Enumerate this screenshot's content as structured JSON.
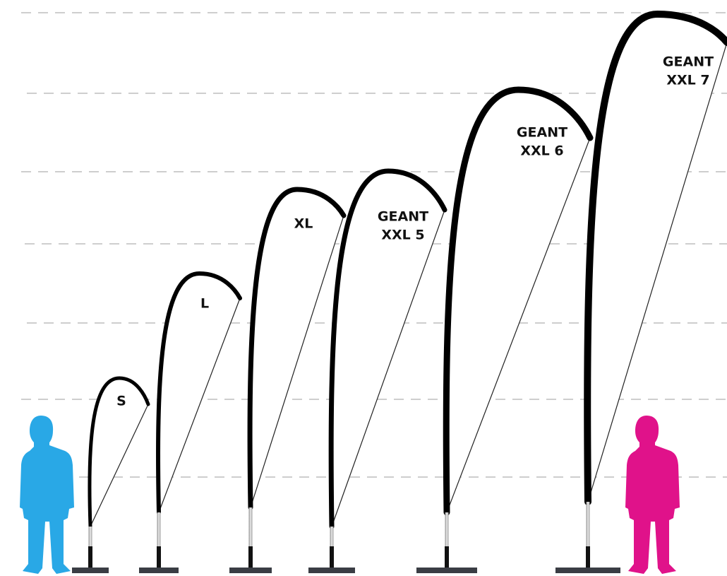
{
  "flags": [
    {
      "label": [
        "S"
      ]
    },
    {
      "label": [
        "L"
      ]
    },
    {
      "label": [
        "XL"
      ]
    },
    {
      "label": [
        "GEANT",
        "XXL 5"
      ]
    },
    {
      "label": [
        "GEANT",
        "XXL 6"
      ]
    },
    {
      "label": [
        "GEANT",
        "XXL 7"
      ]
    }
  ]
}
